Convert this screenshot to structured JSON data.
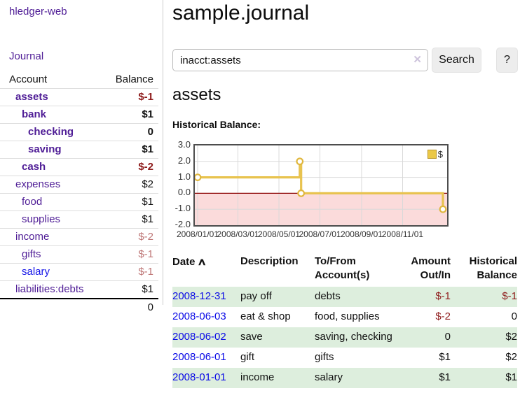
{
  "app": {
    "title": "hledger-web"
  },
  "sidebar": {
    "journal_label": "Journal",
    "accounts_table": {
      "headers": {
        "account": "Account",
        "balance": "Balance"
      },
      "rows": [
        {
          "account": "assets",
          "balance": "$-1",
          "level": 1,
          "bold": true,
          "amount_style": "neg"
        },
        {
          "account": "bank",
          "balance": "$1",
          "level": 2,
          "bold": true,
          "amount_style": "pos"
        },
        {
          "account": "checking",
          "balance": "0",
          "level": 3,
          "bold": true,
          "amount_style": "pos"
        },
        {
          "account": "saving",
          "balance": "$1",
          "level": 3,
          "bold": true,
          "amount_style": "pos"
        },
        {
          "account": "cash",
          "balance": "$-2",
          "level": 2,
          "bold": true,
          "amount_style": "neg"
        },
        {
          "account": "expenses",
          "balance": "$2",
          "level": 1,
          "bold": false,
          "amount_style": "pos"
        },
        {
          "account": "food",
          "balance": "$1",
          "level": 2,
          "bold": false,
          "amount_style": "pos"
        },
        {
          "account": "supplies",
          "balance": "$1",
          "level": 2,
          "bold": false,
          "amount_style": "pos"
        },
        {
          "account": "income",
          "balance": "$-2",
          "level": 1,
          "bold": false,
          "amount_style": "negsoft"
        },
        {
          "account": "gifts",
          "balance": "$-1",
          "level": 2,
          "bold": false,
          "amount_style": "negsoft"
        },
        {
          "account": "salary",
          "balance": "$-1",
          "level": 2,
          "bold": false,
          "amount_style": "negsoft",
          "link_color": "blue"
        },
        {
          "account": "liabilities:debts",
          "balance": "$1",
          "level": 1,
          "bold": false,
          "amount_style": "pos"
        }
      ],
      "total": "0"
    }
  },
  "main": {
    "title": "sample.journal",
    "search": {
      "value": "inacct:assets",
      "clear_icon": "✕",
      "search_button": "Search",
      "help_button": "?"
    },
    "account_heading": "assets",
    "chart_label": "Historical Balance:"
  },
  "chart_data": {
    "type": "line",
    "step": true,
    "title": "Historical Balance:",
    "series": [
      {
        "name": "$",
        "points": [
          [
            "2008-01-01",
            1
          ],
          [
            "2008-06-01",
            2
          ],
          [
            "2008-06-03",
            0
          ],
          [
            "2008-12-31",
            -1
          ]
        ]
      }
    ],
    "x_ticks": [
      "2008/01/01",
      "2008/03/01",
      "2008/05/01",
      "2008/07/01",
      "2008/09/01",
      "2008/11/01"
    ],
    "y_ticks": [
      "3.0",
      "2.0",
      "1.0",
      "0.0",
      "-1.0",
      "-2.0"
    ],
    "ylim": [
      -2,
      3
    ],
    "x_range_days": 365,
    "grid": true,
    "legend": {
      "label": "$",
      "position": "top-right"
    },
    "colors": {
      "line": "#e8c34f",
      "marker_stroke": "#e0b73e",
      "negative_region": "#fbdbdb",
      "zero_line": "#8b0000",
      "grid": "#d9d9d9",
      "border": "#4d4d4d",
      "legend_swatch": "#ebc847"
    }
  },
  "register_table": {
    "headers": {
      "date": "Date",
      "sort_icon": "∧",
      "description": "Description",
      "accounts": "To/From Account(s)",
      "amount": "Amount Out/In",
      "balance": "Historical Balance"
    },
    "rows": [
      {
        "date": "2008-12-31",
        "description": "pay off",
        "accounts": "debts",
        "amount": "$-1",
        "amount_neg": true,
        "balance": "$-1",
        "balance_neg": true
      },
      {
        "date": "2008-06-03",
        "description": "eat & shop",
        "accounts": "food, supplies",
        "amount": "$-2",
        "amount_neg": true,
        "balance": "0",
        "balance_neg": false
      },
      {
        "date": "2008-06-02",
        "description": "save",
        "accounts": "saving, checking",
        "amount": "0",
        "amount_neg": false,
        "balance": "$2",
        "balance_neg": false
      },
      {
        "date": "2008-06-01",
        "description": "gift",
        "accounts": "gifts",
        "amount": "$1",
        "amount_neg": false,
        "balance": "$2",
        "balance_neg": false
      },
      {
        "date": "2008-01-01",
        "description": "income",
        "accounts": "salary",
        "amount": "$1",
        "amount_neg": false,
        "balance": "$1",
        "balance_neg": false
      }
    ]
  }
}
